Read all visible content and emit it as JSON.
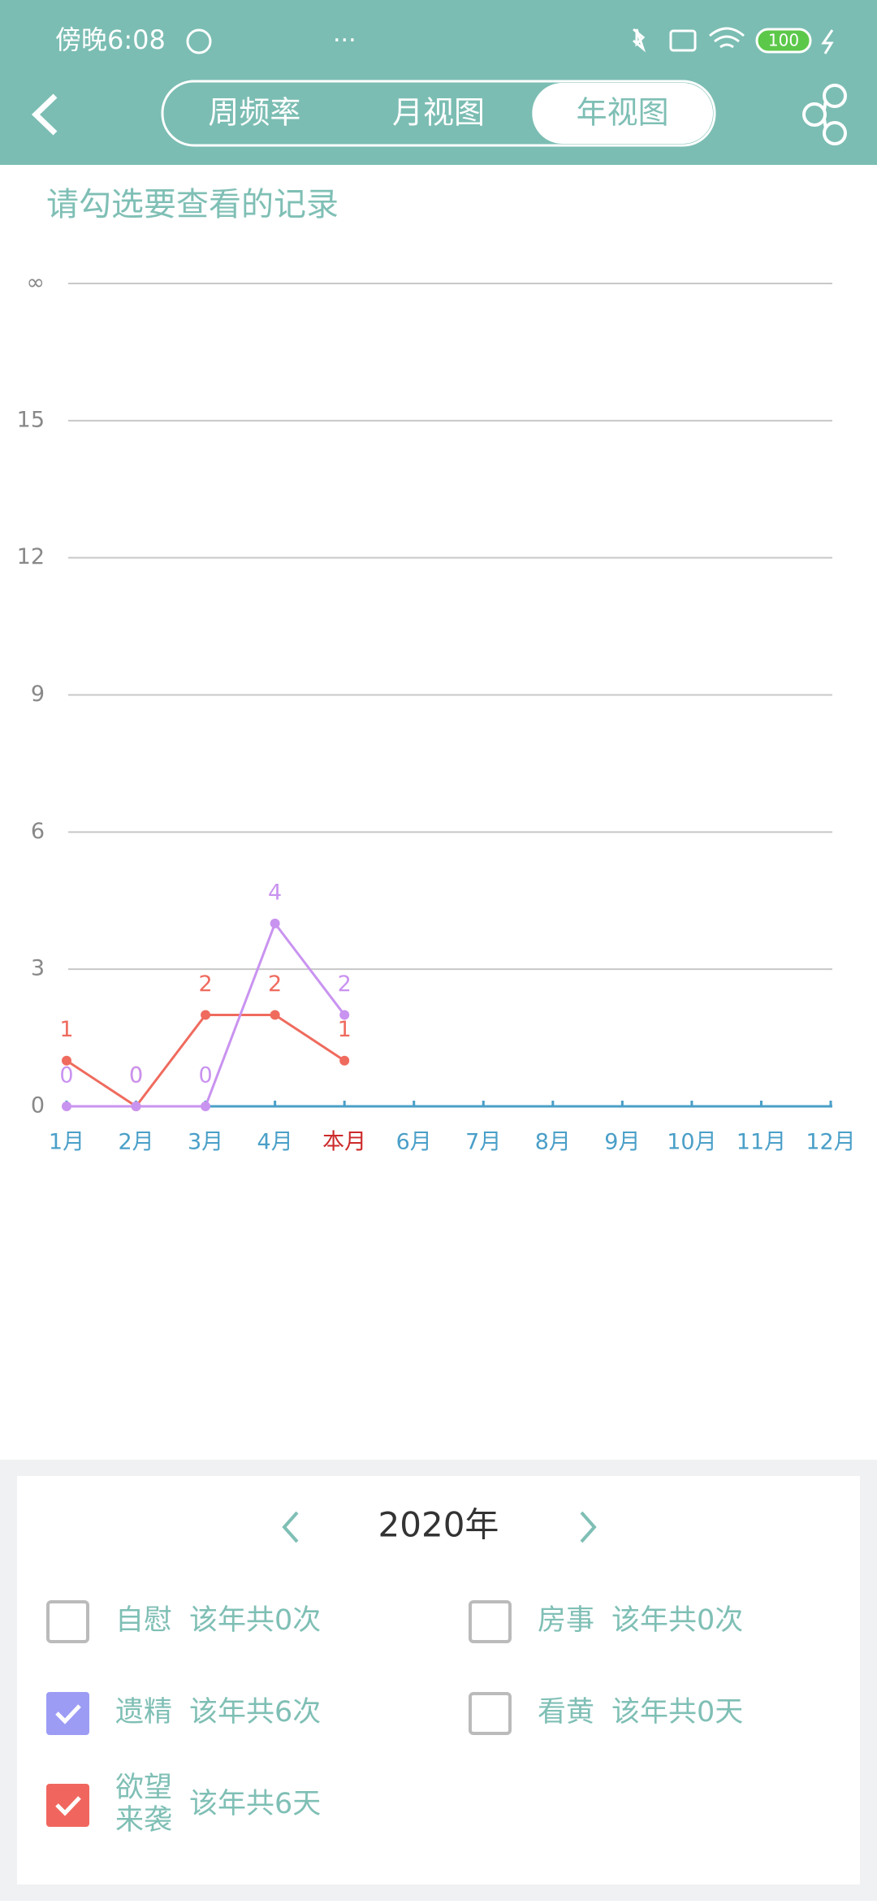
{
  "status_bar": {
    "time": "傍晚6:08",
    "battery": "100"
  },
  "tabs": [
    "周频率",
    "月视图",
    "年视图"
  ],
  "active_tab": 2,
  "subtitle": "请勾选要查看的记录",
  "chart_data": {
    "type": "line",
    "categories": [
      "1月",
      "2月",
      "3月",
      "4月",
      "本月",
      "6月",
      "7月",
      "8月",
      "9月",
      "10月",
      "11月",
      "12月"
    ],
    "highlight_index": 4,
    "highlight_color": "#cc2a2a",
    "series": [
      {
        "color": "#ef6b5e",
        "values": [
          1,
          0,
          2,
          2,
          1,
          null,
          null,
          null,
          null,
          null,
          null,
          null
        ]
      },
      {
        "color": "#c993f0",
        "values": [
          0,
          0,
          0,
          4,
          2,
          null,
          null,
          null,
          null,
          null,
          null,
          null
        ]
      }
    ],
    "ylim": [
      0,
      18
    ],
    "yticks": [
      0,
      3,
      6,
      9,
      12,
      15,
      {
        "value": 18,
        "label": "∞"
      }
    ],
    "grid": true
  },
  "panel": {
    "year": "2020年",
    "items": [
      {
        "label": [
          "自慰"
        ],
        "count": "该年共0次",
        "checked": false
      },
      {
        "label": [
          "房事"
        ],
        "count": "该年共0次",
        "checked": false
      },
      {
        "label": [
          "遗精"
        ],
        "count": "该年共6次",
        "checked": true,
        "color": "#9c9cf5"
      },
      {
        "label": [
          "看黄"
        ],
        "count": "该年共0天",
        "checked": false
      },
      {
        "label": [
          "欲望",
          "来袭"
        ],
        "count": "该年共6天",
        "checked": true,
        "color": "#f0665e"
      }
    ]
  }
}
